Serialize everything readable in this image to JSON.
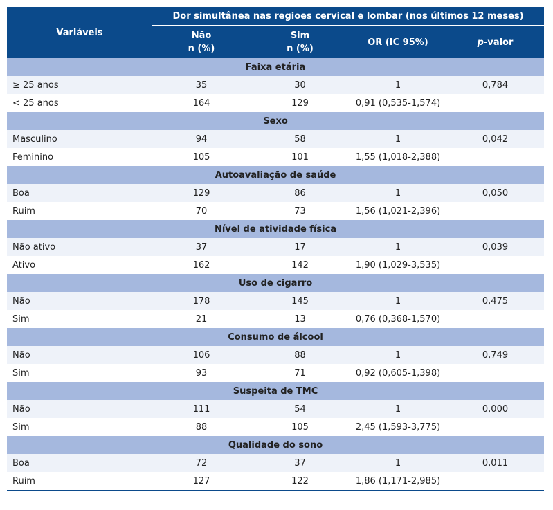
{
  "header": {
    "variables": "Variáveis",
    "group": "Dor simultânea nas regiões cervical e lombar (nos últimos 12 meses)",
    "nao": "Não",
    "nao_unit": "n (%)",
    "sim": "Sim",
    "sim_unit": "n (%)",
    "or": "OR (IC 95%)",
    "p_italic": "p",
    "p_rest": "-valor"
  },
  "colors": {
    "header": "#0b4a8b",
    "section": "#a5b8de",
    "stripe": "#eef2f9"
  },
  "sections": [
    {
      "title": "Faixa etária",
      "rows": [
        {
          "var": "≥ 25 anos",
          "nao": "35",
          "sim": "30",
          "or": "1",
          "p": "0,784"
        },
        {
          "var": "< 25 anos",
          "nao": "164",
          "sim": "129",
          "or": "0,91 (0,535-1,574)",
          "p": ""
        }
      ]
    },
    {
      "title": "Sexo",
      "rows": [
        {
          "var": "Masculino",
          "nao": "94",
          "sim": "58",
          "or": "1",
          "p": "0,042"
        },
        {
          "var": "Feminino",
          "nao": "105",
          "sim": "101",
          "or": "1,55 (1,018-2,388)",
          "p": ""
        }
      ]
    },
    {
      "title": "Autoavaliação de saúde",
      "rows": [
        {
          "var": "Boa",
          "nao": "129",
          "sim": "86",
          "or": "1",
          "p": "0,050"
        },
        {
          "var": "Ruim",
          "nao": "70",
          "sim": "73",
          "or": "1,56 (1,021-2,396)",
          "p": ""
        }
      ]
    },
    {
      "title": "Nível de atividade física",
      "rows": [
        {
          "var": "Não ativo",
          "nao": "37",
          "sim": "17",
          "or": "1",
          "p": "0,039"
        },
        {
          "var": "Ativo",
          "nao": "162",
          "sim": "142",
          "or": "1,90 (1,029-3,535)",
          "p": ""
        }
      ]
    },
    {
      "title": "Uso de cigarro",
      "rows": [
        {
          "var": "Não",
          "nao": "178",
          "sim": "145",
          "or": "1",
          "p": "0,475"
        },
        {
          "var": "Sim",
          "nao": "21",
          "sim": "13",
          "or": "0,76 (0,368-1,570)",
          "p": ""
        }
      ]
    },
    {
      "title": "Consumo de álcool",
      "rows": [
        {
          "var": "Não",
          "nao": "106",
          "sim": "88",
          "or": "1",
          "p": "0,749"
        },
        {
          "var": "Sim",
          "nao": "93",
          "sim": "71",
          "or": "0,92 (0,605-1,398)",
          "p": ""
        }
      ]
    },
    {
      "title": "Suspeita de TMC",
      "rows": [
        {
          "var": "Não",
          "nao": "111",
          "sim": "54",
          "or": "1",
          "p": "0,000"
        },
        {
          "var": "Sim",
          "nao": "88",
          "sim": "105",
          "or": "2,45 (1,593-3,775)",
          "p": ""
        }
      ]
    },
    {
      "title": "Qualidade do sono",
      "rows": [
        {
          "var": "Boa",
          "nao": "72",
          "sim": "37",
          "or": "1",
          "p": "0,011"
        },
        {
          "var": "Ruim",
          "nao": "127",
          "sim": "122",
          "or": "1,86 (1,171-2,985)",
          "p": ""
        }
      ]
    }
  ]
}
